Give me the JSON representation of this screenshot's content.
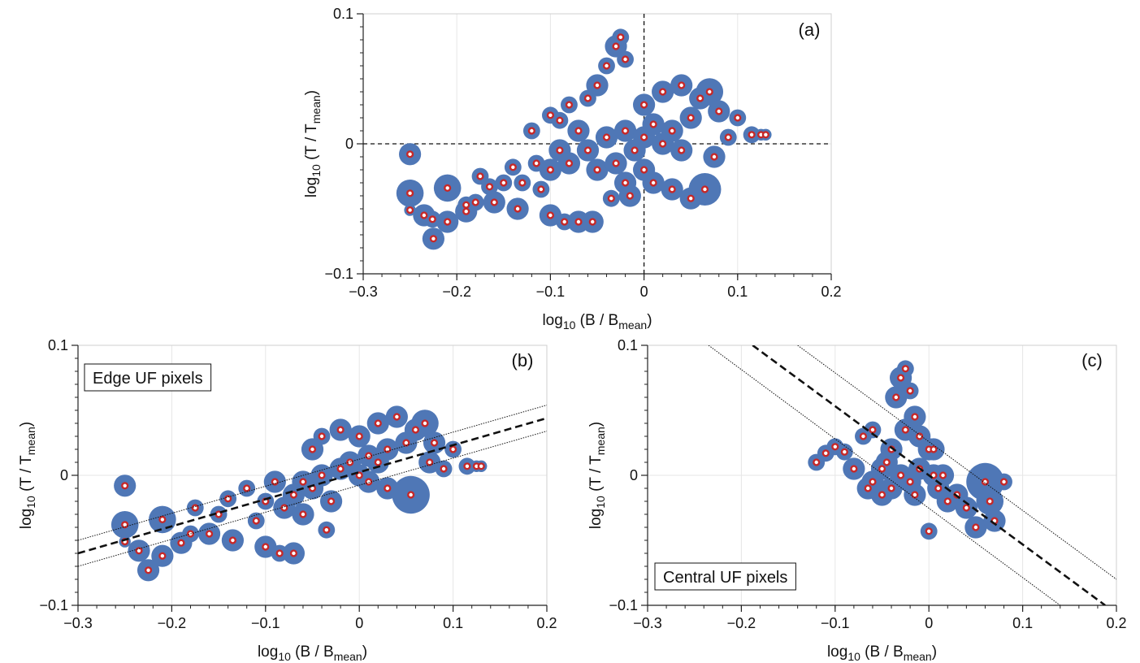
{
  "chart_data": [
    {
      "panel_label": "(a)",
      "type": "scatter",
      "xlabel_main": "log",
      "xlabel_sub": "10",
      "xlabel_rest": " (B / B",
      "xlabel_rest_sub": "mean",
      "xlabel_close": ")",
      "ylabel_main": "log",
      "ylabel_sub": "10",
      "ylabel_rest": " (T / T",
      "ylabel_rest_sub": "mean",
      "ylabel_close": ")",
      "xlim": [
        -0.3,
        0.2
      ],
      "ylim": [
        -0.1,
        0.1
      ],
      "x_ticks": [
        "−0.3",
        "−0.2",
        "−0.1",
        "0",
        "0.1",
        "0.2"
      ],
      "y_ticks": [
        "−0.1",
        "0",
        "0.1"
      ],
      "grid": true,
      "reference_lines": [
        {
          "type": "vertical",
          "x": 0
        },
        {
          "type": "horizontal",
          "y": 0
        }
      ],
      "series": [
        {
          "colors": {
            "bubble": "#4f77b6",
            "point": "#c62828"
          },
          "points": [
            [
              -0.25,
              -0.008,
              3
            ],
            [
              -0.25,
              -0.038,
              4
            ],
            [
              -0.25,
              -0.051,
              1
            ],
            [
              -0.235,
              -0.055,
              3
            ],
            [
              -0.225,
              -0.073,
              3
            ],
            [
              -0.226,
              -0.058,
              2
            ],
            [
              -0.21,
              -0.034,
              4
            ],
            [
              -0.21,
              -0.06,
              3
            ],
            [
              -0.19,
              -0.052,
              3
            ],
            [
              -0.19,
              -0.047,
              2
            ],
            [
              -0.18,
              -0.045,
              2
            ],
            [
              -0.175,
              -0.025,
              2
            ],
            [
              -0.165,
              -0.033,
              2
            ],
            [
              -0.16,
              -0.045,
              3
            ],
            [
              -0.15,
              -0.03,
              2
            ],
            [
              -0.14,
              -0.018,
              2
            ],
            [
              -0.135,
              -0.05,
              3
            ],
            [
              -0.13,
              -0.03,
              2
            ],
            [
              -0.12,
              0.01,
              2
            ],
            [
              -0.115,
              -0.015,
              2
            ],
            [
              -0.11,
              -0.035,
              2
            ],
            [
              -0.1,
              0.022,
              2
            ],
            [
              -0.1,
              -0.055,
              3
            ],
            [
              -0.09,
              0.018,
              2
            ],
            [
              -0.085,
              -0.06,
              2
            ],
            [
              -0.08,
              0.03,
              2
            ],
            [
              -0.07,
              -0.06,
              3
            ],
            [
              -0.06,
              0.035,
              2
            ],
            [
              -0.055,
              -0.06,
              3
            ],
            [
              -0.05,
              0.045,
              3
            ],
            [
              -0.04,
              0.06,
              2
            ],
            [
              -0.035,
              -0.042,
              2
            ],
            [
              -0.03,
              0.075,
              3
            ],
            [
              -0.025,
              0.082,
              2
            ],
            [
              -0.02,
              0.065,
              2
            ],
            [
              -0.015,
              -0.04,
              3
            ],
            [
              0.0,
              0.03,
              3
            ],
            [
              0.01,
              -0.03,
              3
            ],
            [
              0.02,
              0.04,
              3
            ],
            [
              0.03,
              -0.035,
              3
            ],
            [
              0.04,
              0.045,
              3
            ],
            [
              0.05,
              -0.042,
              3
            ],
            [
              0.06,
              0.035,
              3
            ],
            [
              0.065,
              -0.035,
              5
            ],
            [
              0.07,
              0.04,
              4
            ],
            [
              0.075,
              -0.01,
              3
            ],
            [
              0.08,
              0.025,
              3
            ],
            [
              0.09,
              0.005,
              2
            ],
            [
              0.1,
              0.02,
              2
            ],
            [
              0.115,
              0.007,
              2
            ],
            [
              0.125,
              0.007,
              1
            ],
            [
              0.13,
              0.007,
              1
            ],
            [
              -0.06,
              -0.005,
              3
            ],
            [
              -0.05,
              -0.02,
              3
            ],
            [
              -0.04,
              0.005,
              3
            ],
            [
              -0.03,
              -0.015,
              3
            ],
            [
              -0.02,
              0.01,
              3
            ],
            [
              -0.01,
              -0.005,
              3
            ],
            [
              0.0,
              0.005,
              3
            ],
            [
              0.01,
              0.015,
              3
            ],
            [
              0.02,
              0.0,
              3
            ],
            [
              0.03,
              0.01,
              3
            ],
            [
              0.04,
              -0.005,
              3
            ],
            [
              -0.08,
              -0.015,
              3
            ],
            [
              -0.09,
              -0.005,
              3
            ],
            [
              -0.1,
              -0.02,
              3
            ],
            [
              -0.07,
              0.01,
              3
            ],
            [
              0.05,
              0.02,
              3
            ],
            [
              -0.02,
              -0.03,
              3
            ],
            [
              0.0,
              -0.02,
              3
            ]
          ]
        }
      ]
    },
    {
      "panel_label": "(b)",
      "box_label": "Edge UF pixels",
      "type": "scatter",
      "xlabel_main": "log",
      "xlabel_sub": "10",
      "xlabel_rest": " (B / B",
      "xlabel_rest_sub": "mean",
      "xlabel_close": ")",
      "ylabel_main": "log",
      "ylabel_sub": "10",
      "ylabel_rest": " (T / T",
      "ylabel_rest_sub": "mean",
      "ylabel_close": ")",
      "xlim": [
        -0.3,
        0.2
      ],
      "ylim": [
        -0.1,
        0.1
      ],
      "x_ticks": [
        "−0.3",
        "−0.2",
        "−0.1",
        "0",
        "0.1",
        "0.2"
      ],
      "y_ticks": [
        "−0.1",
        "0",
        "0.1"
      ],
      "grid": true,
      "fit_line": {
        "x": [
          -0.3,
          0.2
        ],
        "y": [
          -0.06,
          0.044
        ]
      },
      "band_upper": {
        "x": [
          -0.3,
          0.2
        ],
        "y": [
          -0.05,
          0.054
        ]
      },
      "band_lower": {
        "x": [
          -0.3,
          0.2
        ],
        "y": [
          -0.07,
          0.034
        ]
      },
      "series": [
        {
          "colors": {
            "bubble": "#4f77b6",
            "point": "#c62828"
          },
          "points": [
            [
              -0.25,
              -0.008,
              3
            ],
            [
              -0.25,
              -0.038,
              4
            ],
            [
              -0.25,
              -0.051,
              1
            ],
            [
              -0.235,
              -0.058,
              3
            ],
            [
              -0.225,
              -0.073,
              3
            ],
            [
              -0.21,
              -0.034,
              4
            ],
            [
              -0.21,
              -0.062,
              3
            ],
            [
              -0.19,
              -0.052,
              3
            ],
            [
              -0.18,
              -0.045,
              2
            ],
            [
              -0.175,
              -0.025,
              2
            ],
            [
              -0.16,
              -0.045,
              3
            ],
            [
              -0.15,
              -0.03,
              2
            ],
            [
              -0.14,
              -0.018,
              2
            ],
            [
              -0.135,
              -0.05,
              3
            ],
            [
              -0.12,
              -0.01,
              2
            ],
            [
              -0.11,
              -0.035,
              2
            ],
            [
              -0.1,
              -0.02,
              2
            ],
            [
              -0.1,
              -0.055,
              3
            ],
            [
              -0.085,
              -0.06,
              2
            ],
            [
              -0.07,
              -0.06,
              3
            ],
            [
              -0.06,
              -0.005,
              3
            ],
            [
              -0.05,
              0.02,
              3
            ],
            [
              -0.04,
              0.03,
              2
            ],
            [
              -0.035,
              -0.042,
              2
            ],
            [
              -0.02,
              0.035,
              3
            ],
            [
              -0.01,
              0.01,
              3
            ],
            [
              0.0,
              0.03,
              3
            ],
            [
              0.01,
              -0.005,
              3
            ],
            [
              0.02,
              0.04,
              3
            ],
            [
              0.03,
              0.02,
              3
            ],
            [
              0.04,
              0.045,
              3
            ],
            [
              0.05,
              0.025,
              3
            ],
            [
              0.055,
              -0.015,
              6
            ],
            [
              0.06,
              0.035,
              3
            ],
            [
              0.07,
              0.04,
              4
            ],
            [
              0.075,
              0.01,
              3
            ],
            [
              0.08,
              0.025,
              3
            ],
            [
              0.09,
              0.005,
              2
            ],
            [
              0.1,
              0.02,
              2
            ],
            [
              0.115,
              0.007,
              2
            ],
            [
              0.125,
              0.007,
              1
            ],
            [
              0.13,
              0.007,
              1
            ],
            [
              -0.08,
              -0.025,
              3
            ],
            [
              -0.07,
              -0.015,
              3
            ],
            [
              -0.06,
              -0.03,
              3
            ],
            [
              -0.05,
              -0.01,
              3
            ],
            [
              -0.04,
              0.0,
              3
            ],
            [
              -0.03,
              -0.02,
              3
            ],
            [
              -0.02,
              0.005,
              3
            ],
            [
              0.0,
              0.0,
              3
            ],
            [
              0.01,
              0.015,
              3
            ],
            [
              0.02,
              0.01,
              3
            ],
            [
              0.03,
              -0.01,
              3
            ],
            [
              -0.09,
              -0.005,
              3
            ]
          ]
        }
      ]
    },
    {
      "panel_label": "(c)",
      "box_label": "Central UF pixels",
      "type": "scatter",
      "xlabel_main": "log",
      "xlabel_sub": "10",
      "xlabel_rest": " (B / B",
      "xlabel_rest_sub": "mean",
      "xlabel_close": ")",
      "ylabel_main": "log",
      "ylabel_sub": "10",
      "ylabel_rest": " (T / T",
      "ylabel_rest_sub": "mean",
      "ylabel_close": ")",
      "xlim": [
        -0.3,
        0.2
      ],
      "ylim": [
        -0.1,
        0.1
      ],
      "x_ticks": [
        "−0.3",
        "−0.2",
        "−0.1",
        "0",
        "0.1",
        "0.2"
      ],
      "y_ticks": [
        "−0.1",
        "0",
        "0.1"
      ],
      "grid": true,
      "fit_line": {
        "x": [
          -0.188,
          0.188
        ],
        "y": [
          0.1,
          -0.1
        ]
      },
      "band_upper": {
        "x": [
          -0.14,
          0.2
        ],
        "y": [
          0.1,
          -0.08
        ]
      },
      "band_lower": {
        "x": [
          -0.235,
          0.14
        ],
        "y": [
          0.1,
          -0.1
        ]
      },
      "series": [
        {
          "colors": {
            "bubble": "#4f77b6",
            "point": "#c62828"
          },
          "points": [
            [
              -0.12,
              0.01,
              2
            ],
            [
              -0.11,
              0.017,
              2
            ],
            [
              -0.1,
              0.022,
              2
            ],
            [
              -0.09,
              0.018,
              2
            ],
            [
              -0.08,
              0.005,
              3
            ],
            [
              -0.07,
              0.03,
              2
            ],
            [
              -0.065,
              -0.01,
              3
            ],
            [
              -0.06,
              0.035,
              2
            ],
            [
              -0.05,
              -0.015,
              3
            ],
            [
              -0.04,
              0.02,
              3
            ],
            [
              -0.035,
              0.06,
              3
            ],
            [
              -0.03,
              0.075,
              3
            ],
            [
              -0.025,
              0.082,
              2
            ],
            [
              -0.02,
              0.065,
              2
            ],
            [
              -0.015,
              0.045,
              3
            ],
            [
              -0.01,
              0.03,
              3
            ],
            [
              0.0,
              0.02,
              3
            ],
            [
              0.005,
              0.0,
              3
            ],
            [
              0.01,
              -0.01,
              3
            ],
            [
              0.015,
              0.0,
              3
            ],
            [
              0.02,
              -0.02,
              3
            ],
            [
              0.03,
              -0.015,
              3
            ],
            [
              0.04,
              -0.025,
              3
            ],
            [
              0.05,
              -0.04,
              3
            ],
            [
              0.06,
              -0.005,
              6
            ],
            [
              0.065,
              -0.02,
              4
            ],
            [
              0.07,
              -0.035,
              3
            ],
            [
              0.08,
              -0.005,
              2
            ],
            [
              0.0,
              -0.043,
              2
            ],
            [
              -0.06,
              -0.005,
              3
            ],
            [
              -0.05,
              0.005,
              3
            ],
            [
              -0.04,
              -0.01,
              3
            ],
            [
              -0.03,
              0.0,
              3
            ],
            [
              -0.02,
              -0.005,
              3
            ],
            [
              -0.01,
              0.005,
              3
            ],
            [
              -0.045,
              0.01,
              3
            ],
            [
              -0.015,
              -0.015,
              3
            ],
            [
              0.005,
              0.02,
              3
            ],
            [
              -0.025,
              0.035,
              3
            ]
          ]
        }
      ]
    }
  ]
}
